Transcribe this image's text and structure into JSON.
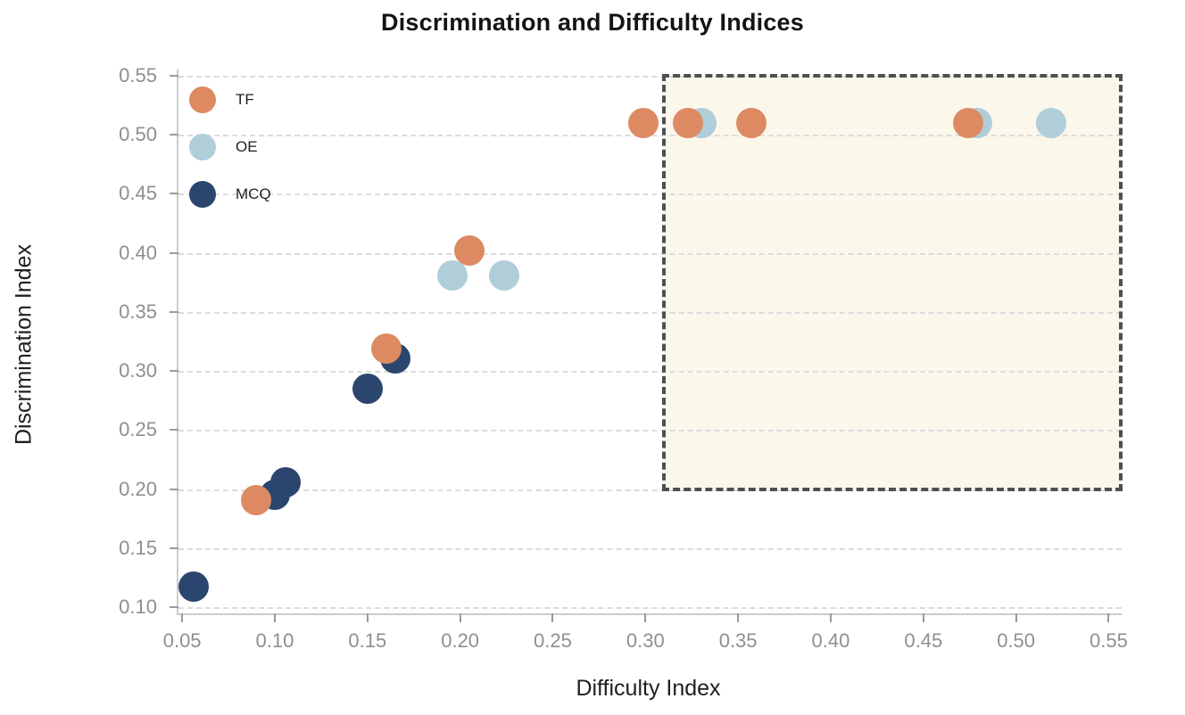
{
  "title": "Discrimination and Difficulty Indices",
  "chart_data": {
    "type": "scatter",
    "title": "Discrimination and Difficulty Indices",
    "xlabel": "Difficulty Index",
    "ylabel": "Discrimination Index",
    "xlim": [
      0.048,
      0.557
    ],
    "ylim": [
      0.095,
      0.555
    ],
    "grid": "horizontal-dashed",
    "legend_position": "inside-top-left",
    "marker_diameter_px": 34,
    "xticks": [
      {
        "v": 0.05,
        "label": "0.05"
      },
      {
        "v": 0.1,
        "label": "0.10"
      },
      {
        "v": 0.15,
        "label": "0.15"
      },
      {
        "v": 0.2,
        "label": "0.20"
      },
      {
        "v": 0.25,
        "label": "0.25"
      },
      {
        "v": 0.3,
        "label": "0.30"
      },
      {
        "v": 0.35,
        "label": "0.35"
      },
      {
        "v": 0.4,
        "label": "0.40"
      },
      {
        "v": 0.45,
        "label": "0.45"
      },
      {
        "v": 0.5,
        "label": "0.50"
      },
      {
        "v": 0.55,
        "label": "0.55"
      }
    ],
    "yticks": [
      {
        "v": 0.1,
        "label": "0.10"
      },
      {
        "v": 0.15,
        "label": "0.15"
      },
      {
        "v": 0.2,
        "label": "0.20"
      },
      {
        "v": 0.25,
        "label": "0.25"
      },
      {
        "v": 0.3,
        "label": "0.30"
      },
      {
        "v": 0.35,
        "label": "0.35"
      },
      {
        "v": 0.4,
        "label": "0.40"
      },
      {
        "v": 0.45,
        "label": "0.45"
      },
      {
        "v": 0.5,
        "label": "0.50"
      },
      {
        "v": 0.55,
        "label": "0.55"
      }
    ],
    "series": [
      {
        "name": "TF",
        "color": "#DD8A63",
        "points": [
          [
            0.09,
            0.191
          ],
          [
            0.16,
            0.319
          ],
          [
            0.205,
            0.402
          ],
          [
            0.299,
            0.51
          ],
          [
            0.323,
            0.51
          ],
          [
            0.357,
            0.51
          ],
          [
            0.474,
            0.51
          ]
        ]
      },
      {
        "name": "OE",
        "color": "#B0CDDA",
        "points": [
          [
            0.196,
            0.381
          ],
          [
            0.224,
            0.381
          ],
          [
            0.33,
            0.51
          ],
          [
            0.479,
            0.51
          ],
          [
            0.519,
            0.51
          ]
        ]
      },
      {
        "name": "MCQ",
        "color": "#2B466E",
        "points": [
          [
            0.056,
            0.118
          ],
          [
            0.1,
            0.195
          ],
          [
            0.106,
            0.206
          ],
          [
            0.15,
            0.285
          ],
          [
            0.165,
            0.311
          ]
        ]
      }
    ],
    "highlight_region": {
      "x0": 0.31,
      "x1": 0.5565,
      "y0": 0.2,
      "y1": 0.55,
      "fill": "#FBF7EB",
      "border_color": "#4F4F4F",
      "border_style": "dashed"
    }
  },
  "colors": {
    "gridline": "#DCDCDC",
    "spine": "#CCCCCC",
    "tick": "#9B9B9B",
    "tick_label": "#8F8F8F",
    "title": "#141414",
    "axis_label": "#1F1F1F"
  }
}
